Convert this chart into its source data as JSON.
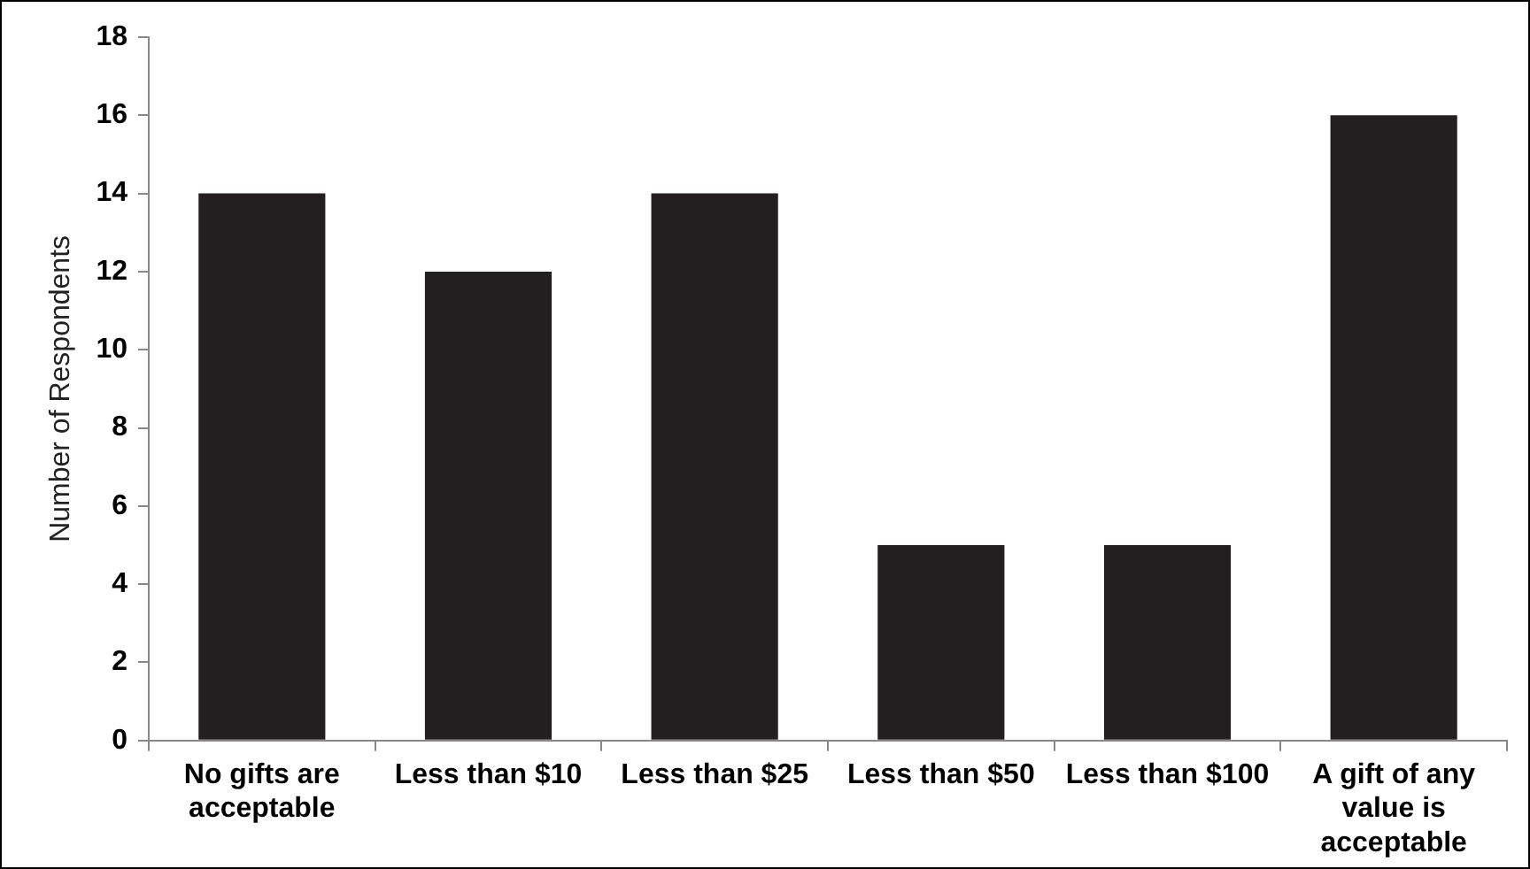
{
  "chart_data": {
    "type": "bar",
    "ylabel": "Number of Respondents",
    "categories": [
      "No gifts are acceptable",
      "Less than $10",
      "Less than $25",
      "Less than $50",
      "Less than $100",
      "A gift of any value is acceptable"
    ],
    "values": [
      14,
      12,
      14,
      5,
      5,
      16
    ],
    "color": "#231f20",
    "ylim": [
      0,
      18
    ],
    "yticks": [
      0,
      2,
      4,
      6,
      8,
      10,
      12,
      14,
      16,
      18
    ],
    "grid": false,
    "legend": false
  }
}
